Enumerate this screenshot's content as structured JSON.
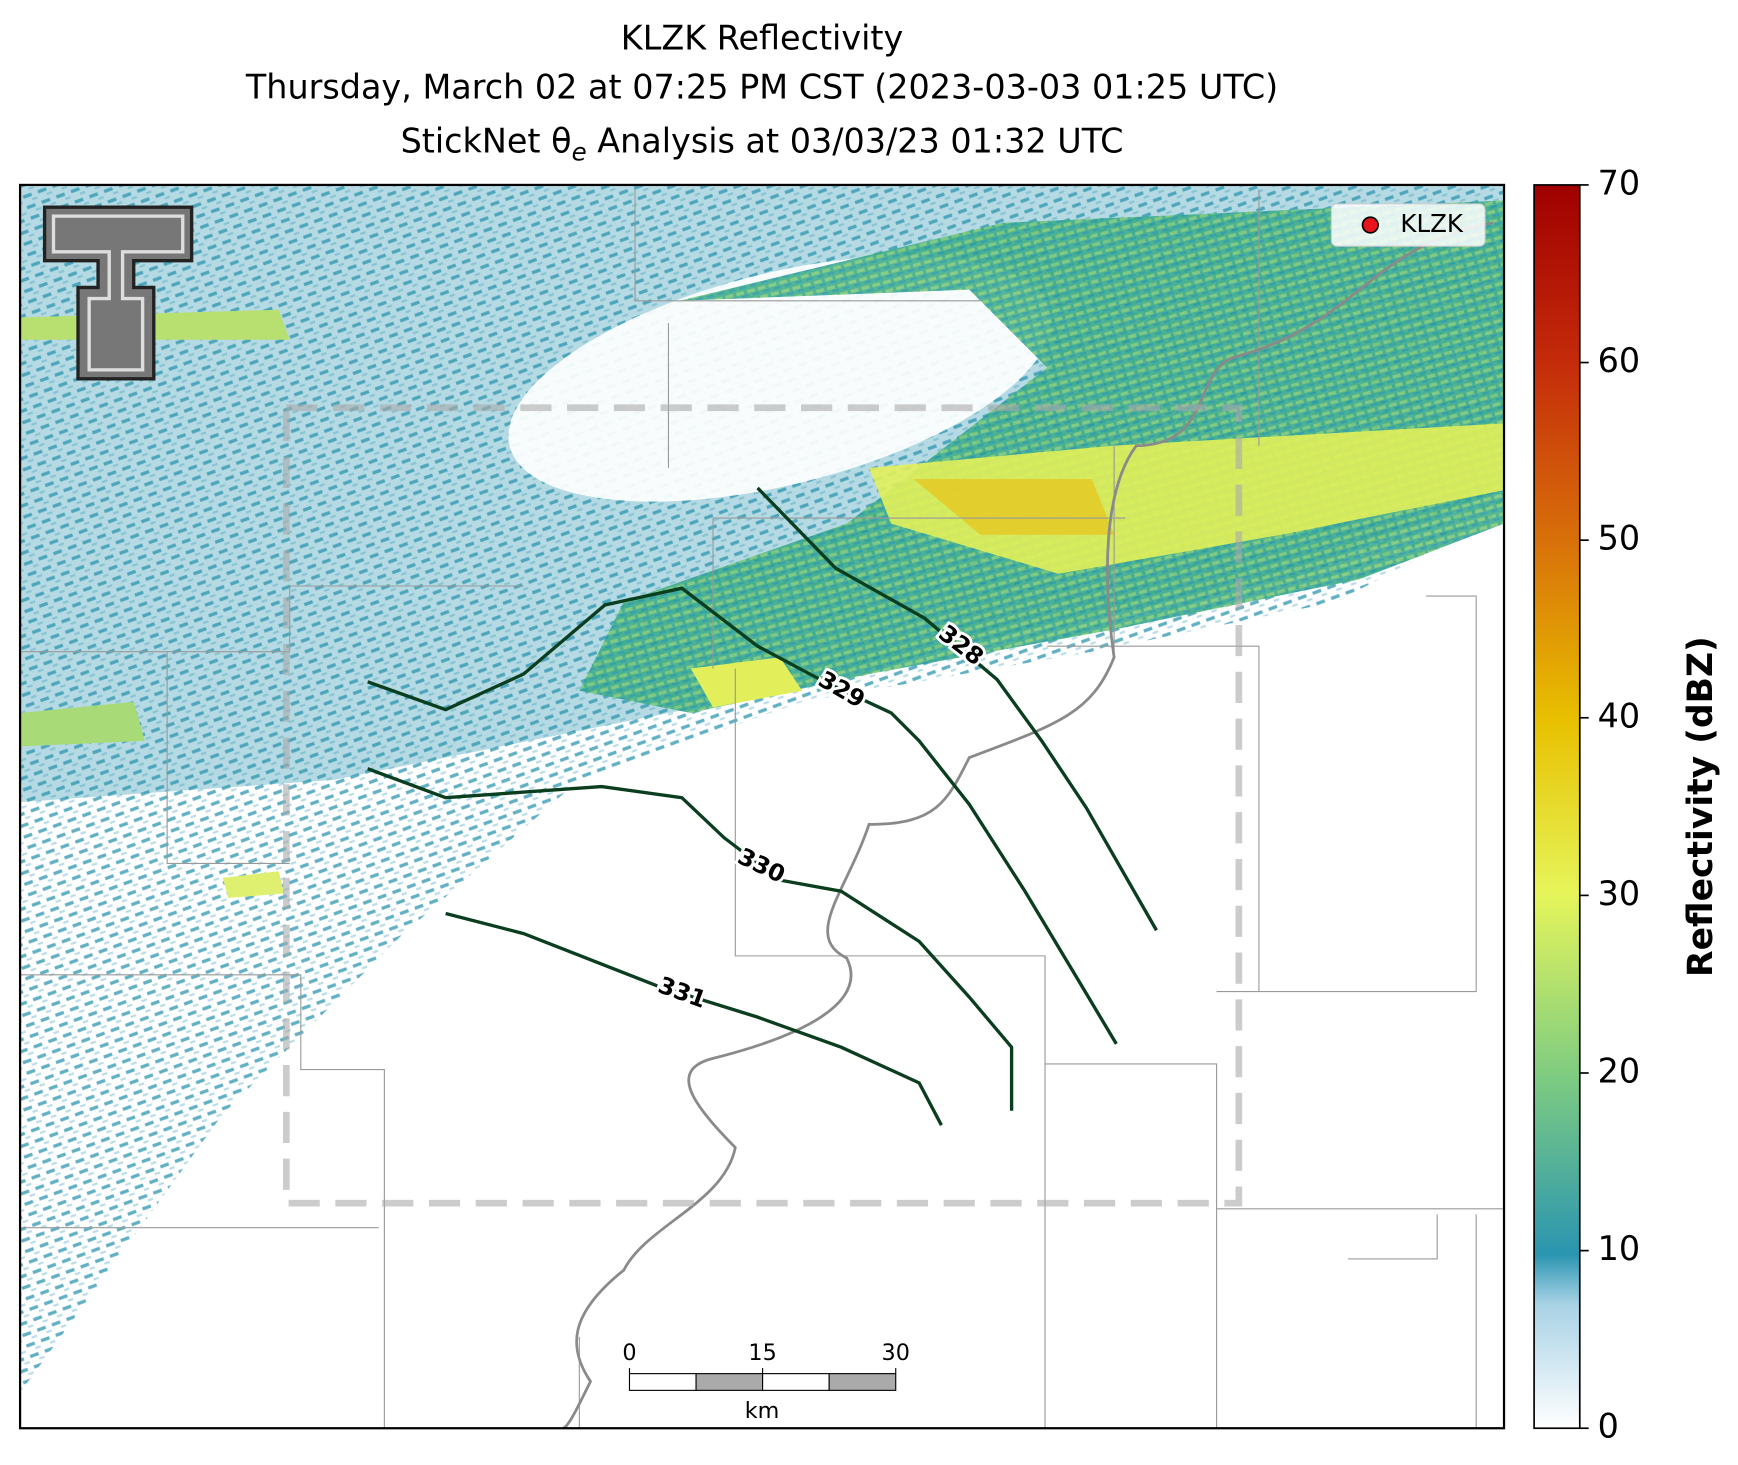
{
  "title_1": "KLZK Reflectivity",
  "title_2": "Thursday, March 02 at 07:25 PM CST (2023-03-03 01:25 UTC)",
  "title_3": {
    "prefix": "StickNet θ",
    "subscript": "e",
    "suffix": " Analysis at 03/03/23 01:32 UTC"
  },
  "legend": {
    "label": "KLZK",
    "color": "#e8141c"
  },
  "colorbar": {
    "label": "Reflectivity (dBZ)",
    "lim": [
      0,
      70
    ],
    "ticks": [
      0,
      10,
      20,
      30,
      40,
      50,
      60,
      70
    ]
  },
  "contours": [
    {
      "value": 328,
      "color": "#0b3d1f"
    },
    {
      "value": 329,
      "color": "#0b3d1f"
    },
    {
      "value": 330,
      "color": "#0b3d1f"
    },
    {
      "value": 331,
      "color": "#0b3d1f"
    }
  ],
  "scalebar": {
    "lim": [
      0,
      30
    ],
    "ticks": [
      0,
      15,
      30
    ],
    "unit": "km"
  }
}
